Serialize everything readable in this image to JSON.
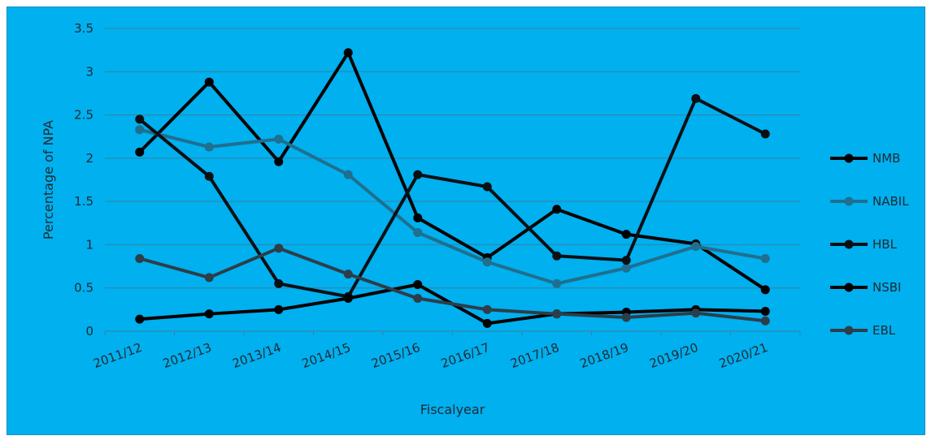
{
  "chart_data": {
    "type": "line",
    "title": "",
    "xlabel": "Fiscalyear",
    "ylabel": "Percentage of NPA",
    "categories": [
      "2011/12",
      "2012/13",
      "2013/14",
      "2014/15",
      "2015/16",
      "2016/17",
      "2017/18",
      "2018/19",
      "2019/20",
      "2020/21"
    ],
    "ylim": [
      0,
      3.5
    ],
    "yticks": [
      "0",
      "0.5",
      "1",
      "1.5",
      "2",
      "2.5",
      "3",
      "3.5"
    ],
    "grid": "horizontal",
    "legend": "right",
    "series": [
      {
        "name": "NMB",
        "color": "#000000",
        "values": [
          2.07,
          2.88,
          1.96,
          3.22,
          1.31,
          0.85,
          1.41,
          1.12,
          1.01,
          0.48
        ]
      },
      {
        "name": "NABIL",
        "color": "#1f6f8f",
        "values": [
          2.33,
          2.13,
          2.22,
          1.81,
          1.14,
          0.8,
          0.55,
          0.73,
          0.98,
          0.84
        ]
      },
      {
        "name": "HBL",
        "color": "#0a0f14",
        "values": [
          2.45,
          1.79,
          0.55,
          0.4,
          1.81,
          1.67,
          0.87,
          0.82,
          2.69,
          2.28
        ]
      },
      {
        "name": "NSBI",
        "color": "#000000",
        "values": [
          0.14,
          0.2,
          0.25,
          0.38,
          0.54,
          0.09,
          0.2,
          0.22,
          0.25,
          0.23
        ]
      },
      {
        "name": "EBL",
        "color": "#2c3e4a",
        "values": [
          0.84,
          0.62,
          0.96,
          0.66,
          0.38,
          0.25,
          0.2,
          0.16,
          0.21,
          0.12
        ]
      }
    ]
  }
}
